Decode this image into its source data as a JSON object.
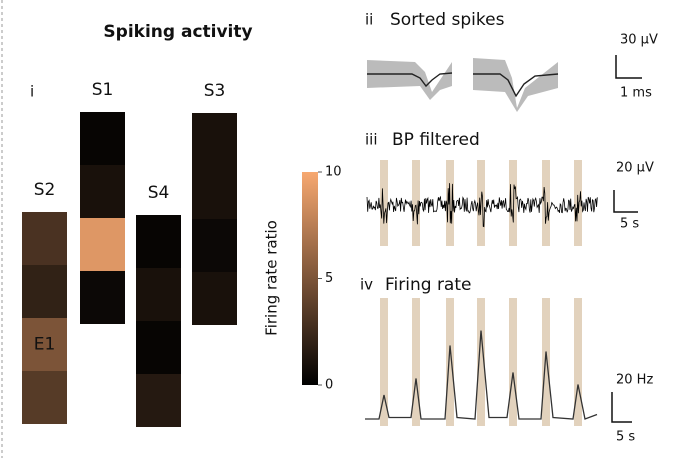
{
  "panel_i": {
    "label": "i",
    "title": "Spiking activity",
    "shanks": [
      {
        "name": "S2",
        "values": [
          3,
          2,
          5,
          3.5
        ],
        "labels": [
          null,
          null,
          "E1",
          null
        ]
      },
      {
        "name": "S1",
        "values": [
          0.3,
          1,
          9,
          0.5
        ]
      },
      {
        "name": "S4",
        "values": [
          0.3,
          1,
          0.3,
          1.5
        ]
      },
      {
        "name": "S3",
        "values": [
          1,
          1,
          0.5,
          1
        ]
      }
    ],
    "colorbar": {
      "label": "Firing rate ratio",
      "lim": [
        0,
        10
      ],
      "ticks": [
        0,
        5,
        10
      ]
    }
  },
  "panel_ii": {
    "label": "ii",
    "title": "Sorted spikes",
    "scale_y": "30 µV",
    "scale_x": "1 ms"
  },
  "panel_iii": {
    "label": "iii",
    "title": "BP filtered",
    "scale_y": "20 µV",
    "scale_x": "5 s"
  },
  "panel_iv": {
    "label": "iv",
    "title": "Firing rate",
    "scale_y": "20 Hz",
    "scale_x": "5 s",
    "x": [
      0,
      3.5,
      4.75,
      6,
      11.5,
      12.75,
      14,
      20,
      21.25,
      23,
      27.5,
      29,
      31,
      35.5,
      37,
      38.5,
      44,
      45.25,
      47,
      52,
      53.25,
      55,
      58
    ],
    "values": [
      2,
      2,
      18,
      3,
      3,
      29,
      2,
      2,
      51,
      3,
      2,
      61,
      3,
      3,
      33,
      2,
      2,
      47,
      3,
      2,
      25,
      2,
      5
    ]
  }
}
